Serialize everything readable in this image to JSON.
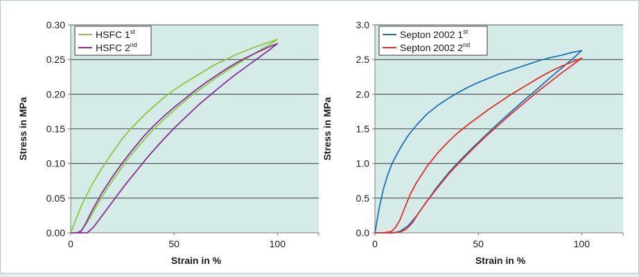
{
  "chart_data": [
    {
      "type": "line",
      "xlabel": "Strain in %",
      "ylabel": "Stress in MPa",
      "xlim": [
        0,
        120
      ],
      "ylim": [
        0,
        0.3
      ],
      "xticks": [
        "0",
        "50",
        "100"
      ],
      "xtick_values": [
        0,
        50,
        100
      ],
      "yticks": [
        "0.00",
        "0.05",
        "0.10",
        "0.15",
        "0.20",
        "0.25",
        "0.30"
      ],
      "ytick_values": [
        0,
        0.05,
        0.1,
        0.15,
        0.2,
        0.25,
        0.3
      ],
      "grid": "horizontal",
      "legend_position": "top-left",
      "series": [
        {
          "label_main": "HSFC 1",
          "label_sup": "st",
          "color": "#8cc63f",
          "x": [
            0,
            5,
            10,
            15,
            20,
            25,
            30,
            35,
            40,
            45,
            50,
            55,
            60,
            65,
            70,
            75,
            80,
            85,
            90,
            95,
            100,
            97,
            93,
            88,
            82,
            76,
            70,
            64,
            58,
            52,
            46,
            40,
            34,
            28,
            22,
            17,
            12,
            8,
            5,
            3
          ],
          "y": [
            0,
            0.038,
            0.068,
            0.093,
            0.115,
            0.136,
            0.153,
            0.168,
            0.182,
            0.195,
            0.206,
            0.216,
            0.225,
            0.234,
            0.243,
            0.25,
            0.257,
            0.263,
            0.269,
            0.274,
            0.279,
            0.273,
            0.266,
            0.257,
            0.246,
            0.235,
            0.223,
            0.21,
            0.197,
            0.182,
            0.166,
            0.149,
            0.129,
            0.108,
            0.083,
            0.061,
            0.036,
            0.015,
            0.003,
            0
          ]
        },
        {
          "label_main": "HSFC 2",
          "label_sup": "nd",
          "color": "#8b2a96",
          "x": [
            0,
            3,
            5,
            7,
            10,
            15,
            20,
            25,
            30,
            35,
            40,
            45,
            50,
            55,
            60,
            65,
            70,
            75,
            80,
            85,
            90,
            95,
            100,
            97,
            92,
            86,
            80,
            74,
            68,
            62,
            56,
            50,
            44,
            38,
            32,
            26,
            20,
            15,
            11,
            8,
            6,
            4,
            2,
            0
          ],
          "y": [
            0,
            0,
            0.002,
            0.012,
            0.03,
            0.057,
            0.08,
            0.101,
            0.12,
            0.138,
            0.154,
            0.168,
            0.181,
            0.193,
            0.205,
            0.216,
            0.226,
            0.236,
            0.245,
            0.253,
            0.26,
            0.267,
            0.273,
            0.266,
            0.255,
            0.242,
            0.229,
            0.215,
            0.2,
            0.185,
            0.168,
            0.151,
            0.132,
            0.112,
            0.09,
            0.068,
            0.044,
            0.024,
            0.008,
            0,
            0,
            0,
            0,
            0
          ]
        }
      ]
    },
    {
      "type": "line",
      "xlabel": "Strain in %",
      "ylabel": "Stress in MPa",
      "xlim": [
        0,
        120
      ],
      "ylim": [
        0,
        3.0
      ],
      "xticks": [
        "0",
        "50",
        "100"
      ],
      "xtick_values": [
        0,
        50,
        100
      ],
      "yticks": [
        "0.0",
        "0.5",
        "1.0",
        "1.5",
        "2.0",
        "2.5",
        "3.0"
      ],
      "ytick_values": [
        0,
        0.5,
        1.0,
        1.5,
        2.0,
        2.5,
        3.0
      ],
      "grid": "horizontal",
      "legend_position": "top-left",
      "series": [
        {
          "label_main": "Septon 2002 1",
          "label_sup": "st",
          "color": "#1f6fb5",
          "x": [
            0,
            2,
            4,
            6,
            8,
            10,
            13,
            16,
            20,
            25,
            30,
            35,
            40,
            45,
            50,
            55,
            60,
            65,
            70,
            75,
            80,
            85,
            90,
            95,
            100,
            96,
            90,
            84,
            78,
            72,
            66,
            60,
            54,
            48,
            42,
            36,
            30,
            25,
            20,
            16,
            12,
            9,
            6,
            3,
            0
          ],
          "y": [
            0,
            0.35,
            0.62,
            0.82,
            0.98,
            1.1,
            1.26,
            1.4,
            1.55,
            1.71,
            1.83,
            1.93,
            2.02,
            2.1,
            2.17,
            2.23,
            2.29,
            2.34,
            2.39,
            2.44,
            2.49,
            2.53,
            2.56,
            2.6,
            2.63,
            2.52,
            2.37,
            2.22,
            2.06,
            1.91,
            1.75,
            1.59,
            1.42,
            1.25,
            1.07,
            0.88,
            0.66,
            0.45,
            0.24,
            0.1,
            0.02,
            0,
            0,
            0,
            0
          ]
        },
        {
          "label_main": "Septon 2002 2",
          "label_sup": "nd",
          "color": "#e32b2b",
          "x": [
            0,
            4,
            8,
            10,
            12,
            14,
            17,
            20,
            25,
            30,
            35,
            40,
            45,
            50,
            55,
            60,
            65,
            70,
            75,
            80,
            85,
            90,
            95,
            100,
            96,
            90,
            84,
            78,
            72,
            66,
            60,
            54,
            48,
            42,
            36,
            30,
            25,
            21,
            18,
            15,
            12,
            9,
            6,
            3,
            0
          ],
          "y": [
            0,
            0,
            0.02,
            0.08,
            0.18,
            0.33,
            0.55,
            0.72,
            0.95,
            1.14,
            1.3,
            1.44,
            1.56,
            1.67,
            1.78,
            1.88,
            1.98,
            2.07,
            2.16,
            2.25,
            2.33,
            2.4,
            2.46,
            2.52,
            2.43,
            2.3,
            2.16,
            2.02,
            1.87,
            1.72,
            1.56,
            1.4,
            1.23,
            1.05,
            0.86,
            0.64,
            0.45,
            0.28,
            0.14,
            0.05,
            0.01,
            0,
            0,
            0,
            0
          ]
        }
      ]
    }
  ]
}
